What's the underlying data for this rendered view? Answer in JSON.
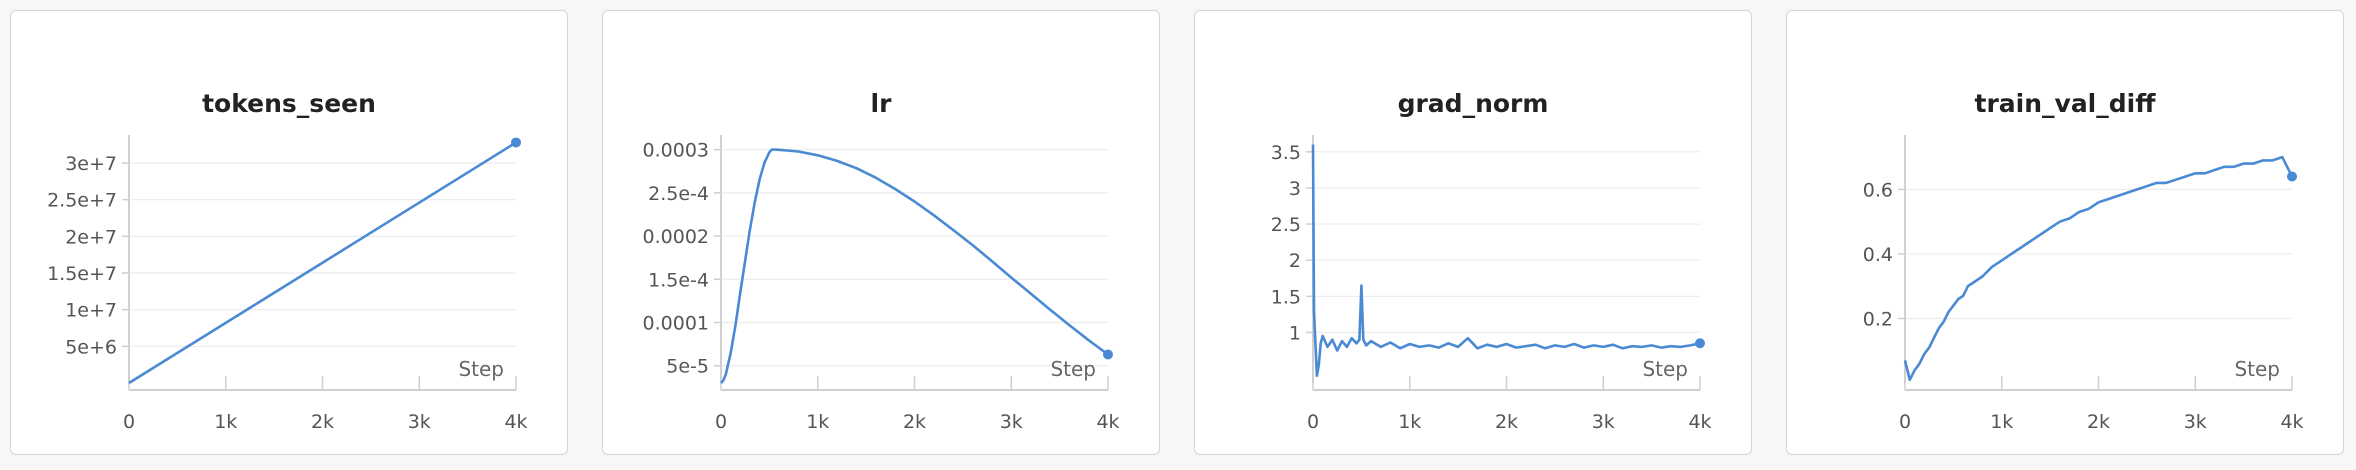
{
  "series_color": "#4a8ad4",
  "chart_data": [
    {
      "type": "line",
      "title": "tokens_seen",
      "xlabel": "Step",
      "xlim": [
        0,
        4000
      ],
      "ylim": [
        0,
        33000000
      ],
      "xticks": [
        0,
        1000,
        2000,
        3000,
        4000
      ],
      "xtick_labels": [
        "0",
        "1k",
        "2k",
        "3k",
        "4k"
      ],
      "yticks": [
        5000000,
        10000000,
        15000000,
        20000000,
        25000000,
        30000000
      ],
      "ytick_labels": [
        "5e+6",
        "1e+7",
        "1.5e+7",
        "2e+7",
        "2.5e+7",
        "3e+7"
      ],
      "grid": true,
      "series": [
        {
          "x": [
            0,
            4000
          ],
          "y": [
            0,
            32800000
          ]
        }
      ],
      "end_marker": true
    },
    {
      "type": "line",
      "title": "lr",
      "xlabel": "Step",
      "xlim": [
        0,
        4000
      ],
      "ylim": [
        3e-05,
        0.00031
      ],
      "xticks": [
        0,
        1000,
        2000,
        3000,
        4000
      ],
      "xtick_labels": [
        "0",
        "1k",
        "2k",
        "3k",
        "4k"
      ],
      "yticks": [
        5e-05,
        0.0001,
        0.00015,
        0.0002,
        0.00025,
        0.0003
      ],
      "ytick_labels": [
        "5e-5",
        "0.0001",
        "1.5e-4",
        "0.0002",
        "2.5e-4",
        "0.0003"
      ],
      "grid": true,
      "series": [
        {
          "x": [
            0,
            25,
            50,
            100,
            150,
            200,
            250,
            300,
            350,
            400,
            450,
            500,
            525,
            550,
            600,
            800,
            1000,
            1200,
            1400,
            1600,
            1800,
            2000,
            2200,
            2400,
            2600,
            2800,
            3000,
            3200,
            3400,
            3600,
            3800,
            4000
          ],
          "y": [
            3e-05,
            3.3e-05,
            4e-05,
            6.5e-05,
            9.7e-05,
            0.000135,
            0.000172,
            0.000208,
            0.00024,
            0.000266,
            0.000285,
            0.000297,
            0.0003,
            0.0003,
            0.0002998,
            0.0002978,
            0.0002935,
            0.000287,
            0.0002785,
            0.0002675,
            0.0002545,
            0.00024,
            0.000224,
            0.000207,
            0.0001895,
            0.000171,
            0.000152,
            0.0001335,
            0.000115,
            9.7e-05,
            7.95e-05,
            6.3e-05
          ]
        }
      ],
      "end_marker": true
    },
    {
      "type": "line",
      "title": "grad_norm",
      "xlabel": "Step",
      "xlim": [
        0,
        4000
      ],
      "ylim": [
        0.3,
        3.65
      ],
      "xticks": [
        0,
        1000,
        2000,
        3000,
        4000
      ],
      "xtick_labels": [
        "0",
        "1k",
        "2k",
        "3k",
        "4k"
      ],
      "yticks": [
        1,
        1.5,
        2,
        2.5,
        3,
        3.5
      ],
      "ytick_labels": [
        "1",
        "1.5",
        "2",
        "2.5",
        "3",
        "3.5"
      ],
      "grid": true,
      "series": [
        {
          "x": [
            0,
            10,
            20,
            40,
            60,
            80,
            100,
            150,
            200,
            250,
            300,
            350,
            400,
            450,
            480,
            500,
            520,
            550,
            600,
            700,
            800,
            900,
            1000,
            1100,
            1200,
            1300,
            1400,
            1500,
            1600,
            1700,
            1800,
            1900,
            2000,
            2100,
            2200,
            2300,
            2400,
            2500,
            2600,
            2700,
            2800,
            2900,
            3000,
            3100,
            3200,
            3300,
            3400,
            3500,
            3600,
            3700,
            3800,
            3900,
            4000
          ],
          "y": [
            3.6,
            1.3,
            1.0,
            0.4,
            0.55,
            0.85,
            0.95,
            0.8,
            0.9,
            0.75,
            0.88,
            0.8,
            0.92,
            0.85,
            0.9,
            1.65,
            0.9,
            0.82,
            0.88,
            0.8,
            0.86,
            0.78,
            0.84,
            0.8,
            0.82,
            0.79,
            0.85,
            0.8,
            0.92,
            0.78,
            0.83,
            0.8,
            0.84,
            0.79,
            0.81,
            0.83,
            0.78,
            0.82,
            0.8,
            0.84,
            0.79,
            0.82,
            0.8,
            0.83,
            0.78,
            0.81,
            0.8,
            0.82,
            0.79,
            0.81,
            0.8,
            0.82,
            0.85
          ]
        }
      ],
      "end_marker": true
    },
    {
      "type": "line",
      "title": "train_val_diff",
      "xlabel": "Step",
      "xlim": [
        0,
        4000
      ],
      "ylim": [
        0.0,
        0.75
      ],
      "xticks": [
        0,
        1000,
        2000,
        3000,
        4000
      ],
      "xtick_labels": [
        "0",
        "1k",
        "2k",
        "3k",
        "4k"
      ],
      "yticks": [
        0.2,
        0.4,
        0.6
      ],
      "ytick_labels": [
        "0.2",
        "0.4",
        "0.6"
      ],
      "grid": true,
      "series": [
        {
          "x": [
            0,
            50,
            100,
            150,
            200,
            250,
            300,
            350,
            400,
            450,
            500,
            550,
            600,
            650,
            700,
            800,
            900,
            1000,
            1100,
            1200,
            1300,
            1400,
            1500,
            1600,
            1700,
            1800,
            1900,
            2000,
            2100,
            2200,
            2300,
            2400,
            2500,
            2600,
            2700,
            2800,
            2900,
            3000,
            3100,
            3200,
            3300,
            3400,
            3500,
            3600,
            3700,
            3800,
            3900,
            4000
          ],
          "y": [
            0.07,
            0.01,
            0.04,
            0.06,
            0.09,
            0.11,
            0.14,
            0.17,
            0.19,
            0.22,
            0.24,
            0.26,
            0.27,
            0.3,
            0.31,
            0.33,
            0.36,
            0.38,
            0.4,
            0.42,
            0.44,
            0.46,
            0.48,
            0.5,
            0.51,
            0.53,
            0.54,
            0.56,
            0.57,
            0.58,
            0.59,
            0.6,
            0.61,
            0.62,
            0.62,
            0.63,
            0.64,
            0.65,
            0.65,
            0.66,
            0.67,
            0.67,
            0.68,
            0.68,
            0.69,
            0.69,
            0.7,
            0.64
          ]
        }
      ],
      "end_marker": true
    }
  ]
}
